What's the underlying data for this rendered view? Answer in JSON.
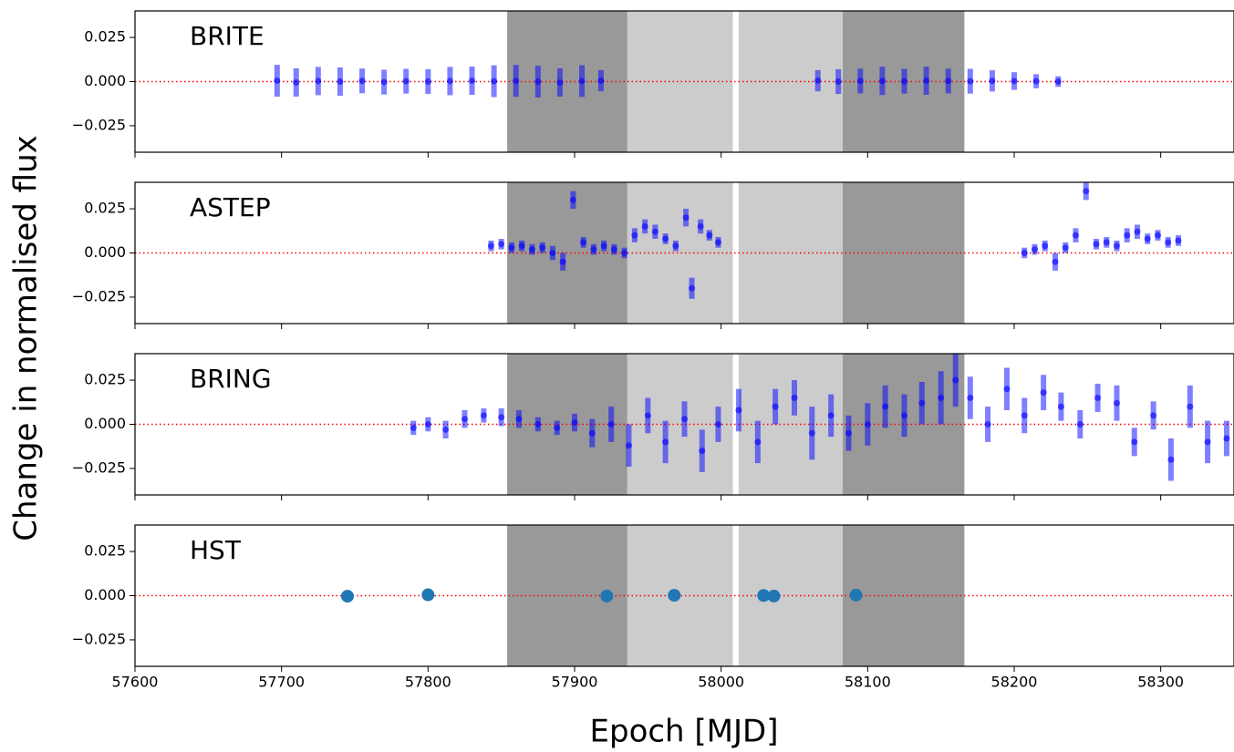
{
  "figure": {
    "xlabel": "Epoch [MJD]",
    "ylabel": "Change in normalised flux"
  },
  "chart_data": [
    {
      "type": "errorbar",
      "title": "BRITE",
      "color": "#0000ff",
      "x": [
        57697,
        57710,
        57725,
        57740,
        57755,
        57770,
        57785,
        57800,
        57815,
        57830,
        57845,
        57860,
        57875,
        57890,
        57905,
        57918,
        58066,
        58080,
        58095,
        58110,
        58125,
        58140,
        58155,
        58170,
        58185,
        58200,
        58215,
        58230
      ],
      "values": [
        0.0005,
        -0.0005,
        0.0003,
        0.0,
        0.0004,
        -0.0003,
        0.0002,
        0.0,
        0.0003,
        0.0005,
        0.0002,
        0.0004,
        0.0,
        -0.0005,
        0.0003,
        0.0005,
        0.0005,
        0.0,
        0.0003,
        0.0004,
        0.0002,
        0.0005,
        0.0003,
        0.0002,
        0.0004,
        0.0003,
        0.0002,
        0.0
      ],
      "errors": [
        0.009,
        0.008,
        0.008,
        0.008,
        0.007,
        0.007,
        0.007,
        0.007,
        0.008,
        0.008,
        0.009,
        0.009,
        0.009,
        0.008,
        0.009,
        0.006,
        0.006,
        0.007,
        0.007,
        0.008,
        0.007,
        0.008,
        0.007,
        0.007,
        0.006,
        0.005,
        0.004,
        0.003
      ],
      "xlim": [
        57600,
        58350
      ],
      "ylim": [
        -0.04,
        0.04
      ],
      "xticks": [
        57600,
        57700,
        57800,
        57900,
        58000,
        58100,
        58200,
        58300
      ],
      "yticks": [
        {
          "value": -0.025,
          "label": "−0.025"
        },
        {
          "value": 0,
          "label": "0.000"
        },
        {
          "value": 0.025,
          "label": "0.025"
        }
      ],
      "spans": [
        {
          "start": 57854,
          "end": 57936,
          "color": "#999999"
        },
        {
          "start": 57936,
          "end": 58008,
          "color": "#cccccc"
        },
        {
          "start": 58012,
          "end": 58083,
          "color": "#cccccc"
        },
        {
          "start": 58083,
          "end": 58166,
          "color": "#999999"
        }
      ],
      "hline": {
        "value": 0,
        "color": "#ff0000"
      }
    },
    {
      "type": "errorbar",
      "title": "ASTEP",
      "color": "#0000ff",
      "x": [
        57843,
        57850,
        57857,
        57864,
        57871,
        57878,
        57885,
        57892,
        57899,
        57906,
        57913,
        57920,
        57927,
        57934,
        57941,
        57948,
        57955,
        57962,
        57969,
        57976,
        57980,
        57986,
        57992,
        57998,
        58207,
        58214,
        58221,
        58228,
        58235,
        58242,
        58249,
        58256,
        58263,
        58270,
        58277,
        58284,
        58291,
        58298,
        58305,
        58312
      ],
      "values": [
        0.004,
        0.005,
        0.003,
        0.004,
        0.002,
        0.003,
        0.0,
        -0.005,
        0.03,
        0.006,
        0.002,
        0.004,
        0.002,
        0.0,
        0.01,
        0.015,
        0.012,
        0.008,
        0.004,
        0.02,
        -0.02,
        0.015,
        0.01,
        0.006,
        0.0,
        0.002,
        0.004,
        -0.005,
        0.003,
        0.01,
        0.035,
        0.005,
        0.006,
        0.004,
        0.01,
        0.012,
        0.008,
        0.01,
        0.006,
        0.007
      ],
      "errors": [
        0.003,
        0.003,
        0.003,
        0.003,
        0.003,
        0.003,
        0.004,
        0.005,
        0.005,
        0.003,
        0.003,
        0.003,
        0.003,
        0.003,
        0.004,
        0.004,
        0.004,
        0.003,
        0.003,
        0.005,
        0.006,
        0.004,
        0.003,
        0.003,
        0.003,
        0.003,
        0.003,
        0.005,
        0.003,
        0.004,
        0.005,
        0.003,
        0.003,
        0.003,
        0.004,
        0.004,
        0.003,
        0.003,
        0.003,
        0.003
      ],
      "xlim": [
        57600,
        58350
      ],
      "ylim": [
        -0.04,
        0.04
      ],
      "xticks": [
        57600,
        57700,
        57800,
        57900,
        58000,
        58100,
        58200,
        58300
      ],
      "yticks": [
        {
          "value": -0.025,
          "label": "−0.025"
        },
        {
          "value": 0,
          "label": "0.000"
        },
        {
          "value": 0.025,
          "label": "0.025"
        }
      ],
      "spans": [
        {
          "start": 57854,
          "end": 57936,
          "color": "#999999"
        },
        {
          "start": 57936,
          "end": 58008,
          "color": "#cccccc"
        },
        {
          "start": 58012,
          "end": 58083,
          "color": "#cccccc"
        },
        {
          "start": 58083,
          "end": 58166,
          "color": "#999999"
        }
      ],
      "hline": {
        "value": 0,
        "color": "#ff0000"
      }
    },
    {
      "type": "errorbar",
      "title": "BRING",
      "color": "#0000ff",
      "x": [
        57790,
        57800,
        57812,
        57825,
        57838,
        57850,
        57862,
        57875,
        57888,
        57900,
        57912,
        57925,
        57937,
        57950,
        57962,
        57975,
        57987,
        57998,
        58012,
        58025,
        58037,
        58050,
        58062,
        58075,
        58087,
        58100,
        58112,
        58125,
        58137,
        58150,
        58160,
        58170,
        58182,
        58195,
        58207,
        58220,
        58232,
        58245,
        58257,
        58270,
        58282,
        58295,
        58307,
        58320,
        58332,
        58345
      ],
      "values": [
        -0.002,
        0.0,
        -0.003,
        0.003,
        0.005,
        0.004,
        0.003,
        0.0,
        -0.002,
        0.001,
        -0.005,
        0.0,
        -0.012,
        0.005,
        -0.01,
        0.003,
        -0.015,
        0.0,
        0.008,
        -0.01,
        0.01,
        0.015,
        -0.005,
        0.005,
        -0.005,
        0.0,
        0.01,
        0.005,
        0.012,
        0.015,
        0.025,
        0.015,
        0.0,
        0.02,
        0.005,
        0.018,
        0.01,
        0.0,
        0.015,
        0.012,
        -0.01,
        0.005,
        -0.02,
        0.01,
        -0.01,
        -0.008
      ],
      "errors": [
        0.004,
        0.004,
        0.005,
        0.005,
        0.004,
        0.005,
        0.005,
        0.004,
        0.004,
        0.005,
        0.008,
        0.01,
        0.012,
        0.01,
        0.012,
        0.01,
        0.012,
        0.01,
        0.012,
        0.012,
        0.01,
        0.01,
        0.015,
        0.012,
        0.01,
        0.012,
        0.012,
        0.012,
        0.012,
        0.015,
        0.015,
        0.012,
        0.01,
        0.012,
        0.01,
        0.01,
        0.008,
        0.008,
        0.008,
        0.01,
        0.008,
        0.008,
        0.012,
        0.012,
        0.012,
        0.01
      ],
      "xlim": [
        57600,
        58350
      ],
      "ylim": [
        -0.04,
        0.04
      ],
      "xticks": [
        57600,
        57700,
        57800,
        57900,
        58000,
        58100,
        58200,
        58300
      ],
      "yticks": [
        {
          "value": -0.025,
          "label": "−0.025"
        },
        {
          "value": 0,
          "label": "0.000"
        },
        {
          "value": 0.025,
          "label": "0.025"
        }
      ],
      "spans": [
        {
          "start": 57854,
          "end": 57936,
          "color": "#999999"
        },
        {
          "start": 57936,
          "end": 58008,
          "color": "#cccccc"
        },
        {
          "start": 58012,
          "end": 58083,
          "color": "#cccccc"
        },
        {
          "start": 58083,
          "end": 58166,
          "color": "#999999"
        }
      ],
      "hline": {
        "value": 0,
        "color": "#ff0000"
      }
    },
    {
      "type": "scatter",
      "title": "HST",
      "color": "#1f77b4",
      "x": [
        57745,
        57800,
        57922,
        57968,
        58029,
        58036,
        58092
      ],
      "values": [
        -0.0003,
        0.0005,
        -0.0002,
        0.0002,
        0.0001,
        -0.0002,
        0.0003
      ],
      "xlim": [
        57600,
        58350
      ],
      "ylim": [
        -0.04,
        0.04
      ],
      "xticks": [
        57600,
        57700,
        57800,
        57900,
        58000,
        58100,
        58200,
        58300
      ],
      "yticks": [
        {
          "value": -0.025,
          "label": "−0.025"
        },
        {
          "value": 0,
          "label": "0.000"
        },
        {
          "value": 0.025,
          "label": "0.025"
        }
      ],
      "spans": [
        {
          "start": 57854,
          "end": 57936,
          "color": "#999999"
        },
        {
          "start": 57936,
          "end": 58008,
          "color": "#cccccc"
        },
        {
          "start": 58012,
          "end": 58083,
          "color": "#cccccc"
        },
        {
          "start": 58083,
          "end": 58166,
          "color": "#999999"
        }
      ],
      "hline": {
        "value": 0,
        "color": "#ff0000"
      },
      "show_xtick_labels": true
    }
  ]
}
